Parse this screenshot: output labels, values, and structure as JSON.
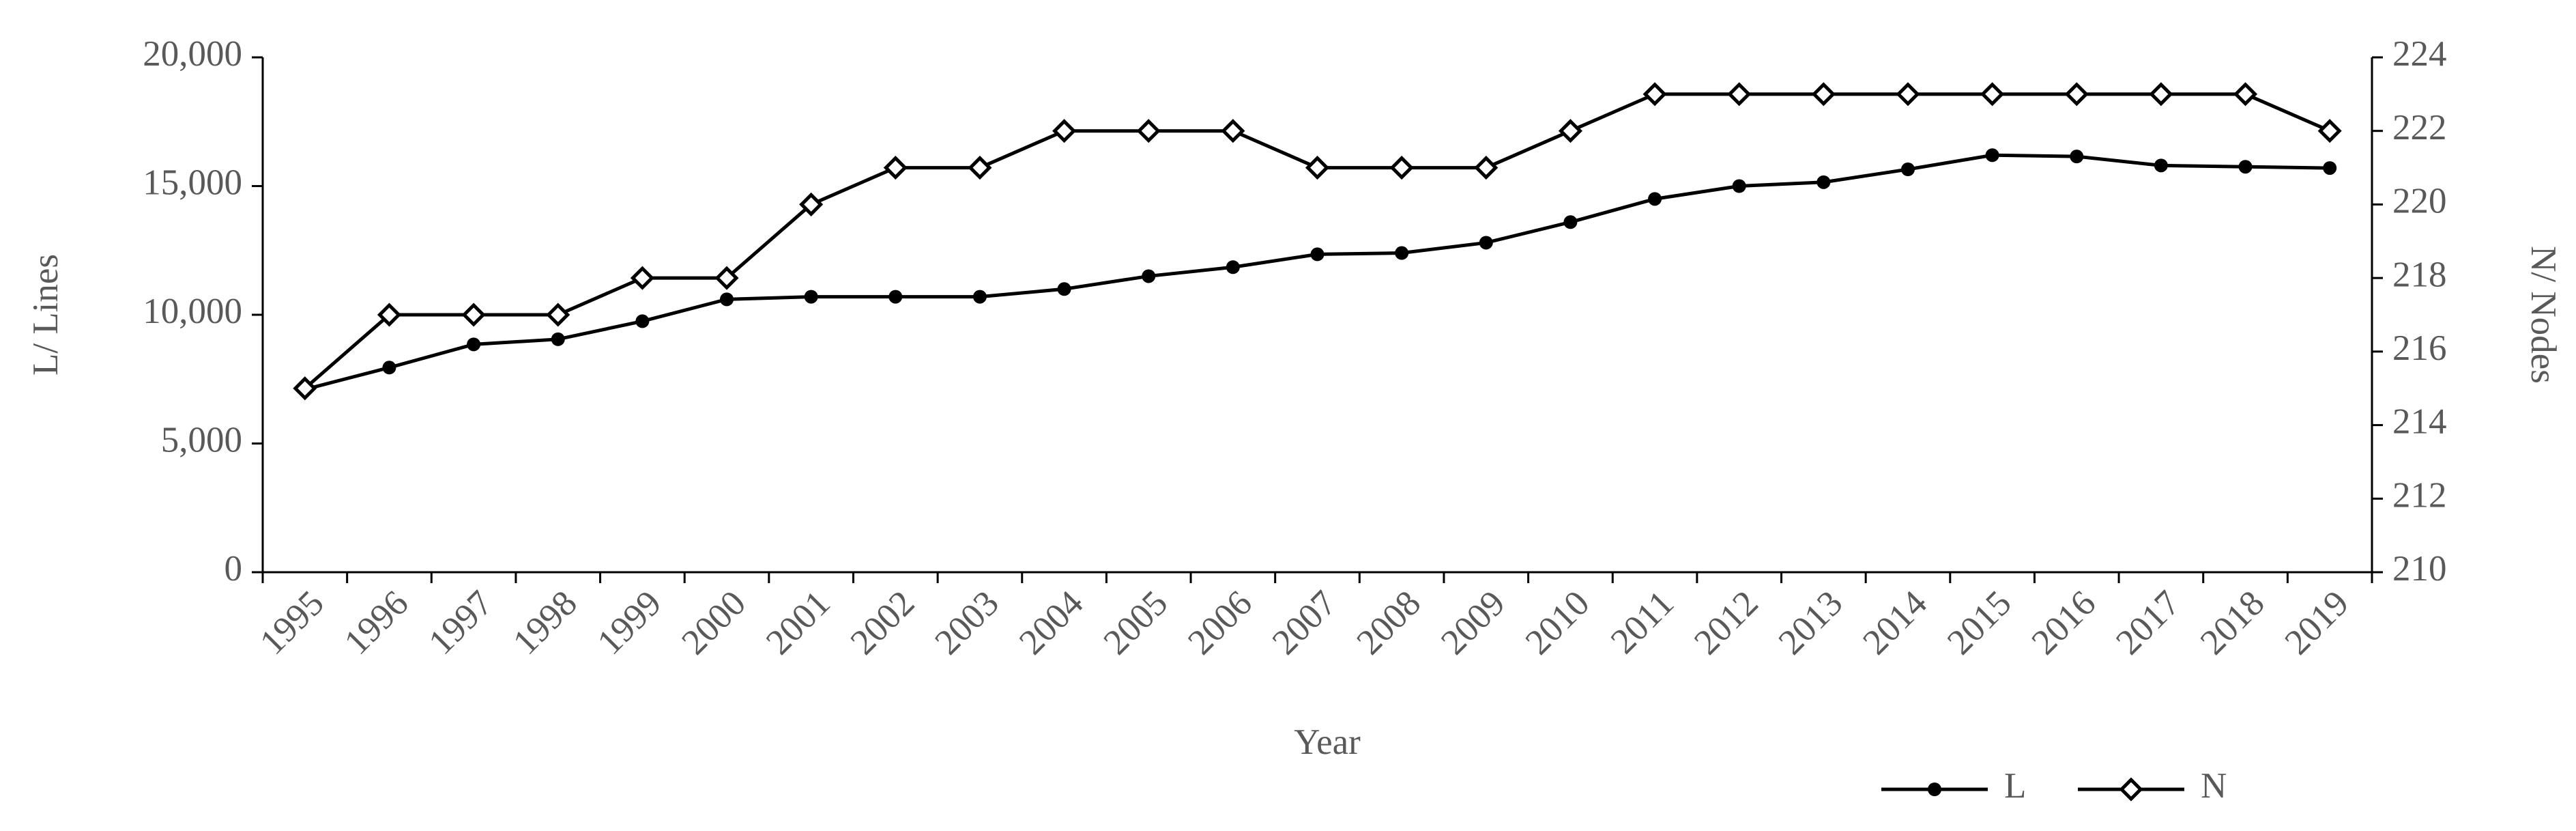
{
  "chart_data": {
    "type": "line",
    "x_label": "Year",
    "y_label": "L/ Lines",
    "y2_label": "N/ Nodes",
    "categories": [
      "1995",
      "1996",
      "1997",
      "1998",
      "1999",
      "2000",
      "2001",
      "2002",
      "2003",
      "2004",
      "2005",
      "2006",
      "2007",
      "2008",
      "2009",
      "2010",
      "2011",
      "2012",
      "2013",
      "2014",
      "2015",
      "2016",
      "2017",
      "2018",
      "2019"
    ],
    "series": [
      {
        "name": "L",
        "color": "#000000",
        "marker": "circle",
        "values": [
          7100,
          7950,
          8850,
          9050,
          9750,
          10600,
          10700,
          10700,
          10700,
          11000,
          11500,
          11850,
          12350,
          12400,
          12800,
          13600,
          14500,
          15000,
          15150,
          15650,
          16200,
          16150,
          15800,
          15750,
          15700
        ]
      },
      {
        "name": "N",
        "color": "#000000",
        "marker": "diamond",
        "axis": "y2",
        "values": [
          215,
          217,
          217,
          217,
          218,
          218,
          220,
          221,
          221,
          222,
          222,
          222,
          221,
          221,
          221,
          222,
          223,
          223,
          223,
          223,
          223,
          223,
          223,
          223,
          222
        ]
      }
    ],
    "ylim": [
      0,
      20000
    ],
    "yticks": [
      0,
      {
        "value": 5000,
        "label": "5,000"
      },
      {
        "value": 10000,
        "label": "10,000"
      },
      {
        "value": 15000,
        "label": "15,000"
      },
      {
        "value": 20000,
        "label": "20,000"
      }
    ],
    "y2lim": [
      210,
      224
    ],
    "y2ticks": [
      210,
      212,
      214,
      216,
      218,
      220,
      222,
      224
    ],
    "legend": "bottom-right"
  }
}
